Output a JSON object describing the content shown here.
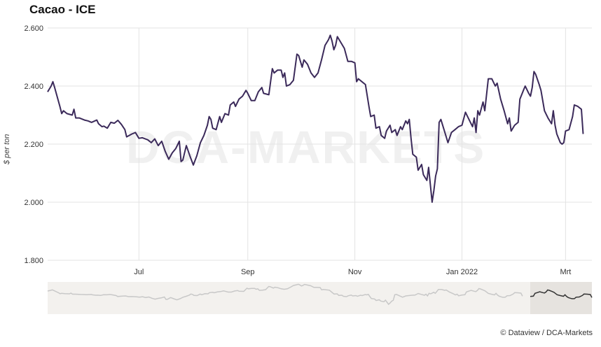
{
  "title": "Cacao - ICE",
  "credit": "© Dataview / DCA-Markets",
  "watermark": "DCA-MARKETS",
  "colors": {
    "line": "#3b2a5a",
    "grid": "#e3e3e3",
    "navigator_bg": "#f3f1ee",
    "navigator_line": "#c8c8c8",
    "navigator_selected": "#e6e3df"
  },
  "chart_data": {
    "type": "line",
    "title": "Cacao - ICE",
    "xlabel": "",
    "ylabel": "$ per ton",
    "ylim": [
      1800,
      2600
    ],
    "yticks": [
      {
        "v": 1800,
        "label": "1.800"
      },
      {
        "v": 2000,
        "label": "2.000"
      },
      {
        "v": 2200,
        "label": "2.200"
      },
      {
        "v": 2400,
        "label": "2.400"
      },
      {
        "v": 2600,
        "label": "2.600"
      }
    ],
    "xlim": [
      "2021-05-10",
      "2022-03-16"
    ],
    "xticks": [
      {
        "date": "2021-07-01",
        "label": "Jul"
      },
      {
        "date": "2021-09-01",
        "label": "Sep"
      },
      {
        "date": "2021-11-01",
        "label": "Nov"
      },
      {
        "date": "2022-01-01",
        "label": "Jan 2022"
      },
      {
        "date": "2022-03-01",
        "label": "Mrt"
      }
    ],
    "grid": true,
    "legend": "none",
    "series": [
      {
        "points": [
          [
            "2021-05-10",
            2380
          ],
          [
            "2021-05-12",
            2400
          ],
          [
            "2021-05-13",
            2415
          ],
          [
            "2021-05-14",
            2395
          ],
          [
            "2021-05-17",
            2330
          ],
          [
            "2021-05-18",
            2305
          ],
          [
            "2021-05-19",
            2315
          ],
          [
            "2021-05-21",
            2305
          ],
          [
            "2021-05-24",
            2300
          ],
          [
            "2021-05-25",
            2320
          ],
          [
            "2021-05-26",
            2290
          ],
          [
            "2021-05-28",
            2290
          ],
          [
            "2021-05-31",
            2283
          ],
          [
            "2021-06-02",
            2280
          ],
          [
            "2021-06-04",
            2275
          ],
          [
            "2021-06-07",
            2283
          ],
          [
            "2021-06-08",
            2270
          ],
          [
            "2021-06-10",
            2260
          ],
          [
            "2021-06-11",
            2262
          ],
          [
            "2021-06-13",
            2255
          ],
          [
            "2021-06-15",
            2275
          ],
          [
            "2021-06-17",
            2272
          ],
          [
            "2021-06-19",
            2282
          ],
          [
            "2021-06-21",
            2268
          ],
          [
            "2021-06-23",
            2250
          ],
          [
            "2021-06-24",
            2225
          ],
          [
            "2021-06-27",
            2235
          ],
          [
            "2021-06-29",
            2240
          ],
          [
            "2021-07-01",
            2220
          ],
          [
            "2021-07-03",
            2222
          ],
          [
            "2021-07-06",
            2215
          ],
          [
            "2021-07-08",
            2205
          ],
          [
            "2021-07-10",
            2218
          ],
          [
            "2021-07-12",
            2195
          ],
          [
            "2021-07-14",
            2210
          ],
          [
            "2021-07-16",
            2175
          ],
          [
            "2021-07-18",
            2148
          ],
          [
            "2021-07-20",
            2170
          ],
          [
            "2021-07-22",
            2185
          ],
          [
            "2021-07-24",
            2210
          ],
          [
            "2021-07-25",
            2140
          ],
          [
            "2021-07-26",
            2145
          ],
          [
            "2021-07-28",
            2195
          ],
          [
            "2021-07-30",
            2160
          ],
          [
            "2021-08-01",
            2128
          ],
          [
            "2021-08-03",
            2160
          ],
          [
            "2021-08-05",
            2205
          ],
          [
            "2021-08-07",
            2230
          ],
          [
            "2021-08-09",
            2265
          ],
          [
            "2021-08-10",
            2295
          ],
          [
            "2021-08-11",
            2285
          ],
          [
            "2021-08-12",
            2255
          ],
          [
            "2021-08-14",
            2250
          ],
          [
            "2021-08-16",
            2295
          ],
          [
            "2021-08-17",
            2275
          ],
          [
            "2021-08-19",
            2305
          ],
          [
            "2021-08-21",
            2300
          ],
          [
            "2021-08-22",
            2335
          ],
          [
            "2021-08-24",
            2345
          ],
          [
            "2021-08-25",
            2330
          ],
          [
            "2021-08-27",
            2355
          ],
          [
            "2021-08-29",
            2365
          ],
          [
            "2021-08-31",
            2385
          ],
          [
            "2021-09-01",
            2375
          ],
          [
            "2021-09-03",
            2350
          ],
          [
            "2021-09-05",
            2350
          ],
          [
            "2021-09-07",
            2380
          ],
          [
            "2021-09-09",
            2395
          ],
          [
            "2021-09-10",
            2375
          ],
          [
            "2021-09-13",
            2370
          ],
          [
            "2021-09-15",
            2460
          ],
          [
            "2021-09-16",
            2445
          ],
          [
            "2021-09-18",
            2455
          ],
          [
            "2021-09-20",
            2455
          ],
          [
            "2021-09-21",
            2430
          ],
          [
            "2021-09-22",
            2445
          ],
          [
            "2021-09-23",
            2400
          ],
          [
            "2021-09-25",
            2405
          ],
          [
            "2021-09-27",
            2420
          ],
          [
            "2021-09-29",
            2510
          ],
          [
            "2021-09-30",
            2505
          ],
          [
            "2021-10-01",
            2485
          ],
          [
            "2021-10-02",
            2465
          ],
          [
            "2021-10-03",
            2490
          ],
          [
            "2021-10-05",
            2475
          ],
          [
            "2021-10-07",
            2445
          ],
          [
            "2021-10-09",
            2430
          ],
          [
            "2021-10-11",
            2445
          ],
          [
            "2021-10-13",
            2490
          ],
          [
            "2021-10-15",
            2540
          ],
          [
            "2021-10-17",
            2560
          ],
          [
            "2021-10-18",
            2575
          ],
          [
            "2021-10-19",
            2555
          ],
          [
            "2021-10-20",
            2525
          ],
          [
            "2021-10-21",
            2540
          ],
          [
            "2021-10-22",
            2570
          ],
          [
            "2021-10-24",
            2550
          ],
          [
            "2021-10-26",
            2530
          ],
          [
            "2021-10-28",
            2485
          ],
          [
            "2021-10-30",
            2485
          ],
          [
            "2021-11-01",
            2480
          ],
          [
            "2021-11-02",
            2415
          ],
          [
            "2021-11-03",
            2425
          ],
          [
            "2021-11-05",
            2415
          ],
          [
            "2021-11-07",
            2405
          ],
          [
            "2021-11-09",
            2330
          ],
          [
            "2021-11-10",
            2295
          ],
          [
            "2021-11-12",
            2300
          ],
          [
            "2021-11-13",
            2255
          ],
          [
            "2021-11-15",
            2260
          ],
          [
            "2021-11-16",
            2230
          ],
          [
            "2021-11-18",
            2220
          ],
          [
            "2021-11-19",
            2245
          ],
          [
            "2021-11-21",
            2265
          ],
          [
            "2021-11-22",
            2240
          ],
          [
            "2021-11-24",
            2250
          ],
          [
            "2021-11-25",
            2230
          ],
          [
            "2021-11-27",
            2260
          ],
          [
            "2021-11-28",
            2250
          ],
          [
            "2021-11-30",
            2280
          ],
          [
            "2021-12-01",
            2270
          ],
          [
            "2021-12-02",
            2285
          ],
          [
            "2021-12-03",
            2220
          ],
          [
            "2021-12-04",
            2165
          ],
          [
            "2021-12-06",
            2155
          ],
          [
            "2021-12-07",
            2110
          ],
          [
            "2021-12-09",
            2130
          ],
          [
            "2021-12-10",
            2095
          ],
          [
            "2021-12-12",
            2075
          ],
          [
            "2021-12-13",
            2120
          ],
          [
            "2021-12-14",
            2060
          ],
          [
            "2021-12-15",
            2000
          ],
          [
            "2021-12-16",
            2040
          ],
          [
            "2021-12-17",
            2090
          ],
          [
            "2021-12-18",
            2115
          ],
          [
            "2021-12-19",
            2275
          ],
          [
            "2021-12-20",
            2285
          ],
          [
            "2021-12-22",
            2245
          ],
          [
            "2021-12-24",
            2205
          ],
          [
            "2021-12-26",
            2240
          ],
          [
            "2021-12-28",
            2250
          ],
          [
            "2021-12-30",
            2260
          ],
          [
            "2022-01-01",
            2265
          ],
          [
            "2022-01-03",
            2310
          ],
          [
            "2022-01-05",
            2285
          ],
          [
            "2022-01-07",
            2260
          ],
          [
            "2022-01-08",
            2290
          ],
          [
            "2022-01-09",
            2240
          ],
          [
            "2022-01-10",
            2315
          ],
          [
            "2022-01-11",
            2300
          ],
          [
            "2022-01-13",
            2345
          ],
          [
            "2022-01-14",
            2315
          ],
          [
            "2022-01-16",
            2425
          ],
          [
            "2022-01-18",
            2425
          ],
          [
            "2022-01-20",
            2400
          ],
          [
            "2022-01-21",
            2410
          ],
          [
            "2022-01-23",
            2355
          ],
          [
            "2022-01-25",
            2315
          ],
          [
            "2022-01-27",
            2270
          ],
          [
            "2022-01-28",
            2290
          ],
          [
            "2022-01-29",
            2245
          ],
          [
            "2022-01-31",
            2265
          ],
          [
            "2022-02-02",
            2275
          ],
          [
            "2022-02-03",
            2355
          ],
          [
            "2022-02-05",
            2385
          ],
          [
            "2022-02-06",
            2400
          ],
          [
            "2022-02-08",
            2375
          ],
          [
            "2022-02-09",
            2365
          ],
          [
            "2022-02-10",
            2395
          ],
          [
            "2022-02-11",
            2450
          ],
          [
            "2022-02-12",
            2440
          ],
          [
            "2022-02-14",
            2405
          ],
          [
            "2022-02-15",
            2385
          ],
          [
            "2022-02-17",
            2315
          ],
          [
            "2022-02-19",
            2290
          ],
          [
            "2022-02-21",
            2270
          ],
          [
            "2022-02-22",
            2315
          ],
          [
            "2022-02-23",
            2265
          ],
          [
            "2022-02-24",
            2235
          ],
          [
            "2022-02-26",
            2205
          ],
          [
            "2022-02-27",
            2200
          ],
          [
            "2022-02-28",
            2205
          ],
          [
            "2022-03-01",
            2245
          ],
          [
            "2022-03-03",
            2250
          ],
          [
            "2022-03-05",
            2295
          ],
          [
            "2022-03-06",
            2335
          ],
          [
            "2022-03-08",
            2330
          ],
          [
            "2022-03-10",
            2320
          ],
          [
            "2022-03-11",
            2235
          ]
        ]
      }
    ]
  }
}
